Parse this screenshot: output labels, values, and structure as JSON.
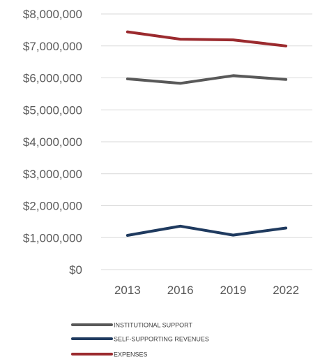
{
  "chart_data": {
    "type": "line",
    "title": "",
    "xlabel": "",
    "ylabel": "",
    "categories": [
      "2013",
      "2016",
      "2019",
      "2022"
    ],
    "ylim": [
      0,
      8000000
    ],
    "y_ticks": [
      "$0",
      "$1,000,000",
      "$2,000,000",
      "$3,000,000",
      "$4,000,000",
      "$5,000,000",
      "$6,000,000",
      "$7,000,000",
      "$8,000,000"
    ],
    "grid": true,
    "legend_position": "bottom",
    "series": [
      {
        "name": "INSTITUTIONAL SUPPORT",
        "color": "#595959",
        "values": [
          5970000,
          5830000,
          6070000,
          5950000
        ]
      },
      {
        "name": "SELF-SUPPORTING REVENUES",
        "color": "#1f3a5f",
        "values": [
          1070000,
          1360000,
          1080000,
          1300000
        ]
      },
      {
        "name": "EXPENSES",
        "color": "#9b2a2e",
        "values": [
          7440000,
          7210000,
          7190000,
          7000000
        ]
      }
    ]
  }
}
